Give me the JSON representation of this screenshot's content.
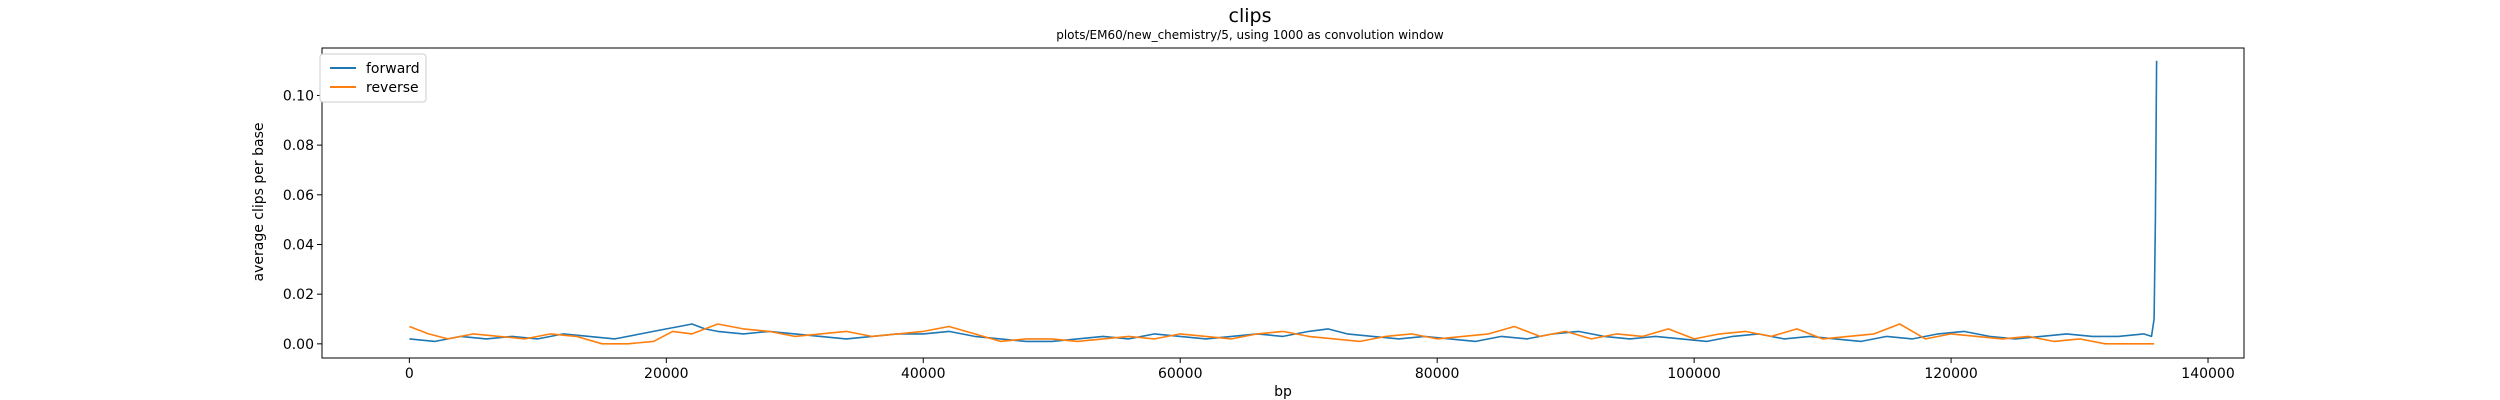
{
  "chart_data": {
    "type": "line",
    "title": "clips",
    "subtitle": "plots/EM60/new_chemistry/5, using 1000 as convolution window",
    "xlabel": "bp",
    "ylabel": "average clips per base",
    "xlim": [
      -6800,
      142800
    ],
    "ylim": [
      -0.0057,
      0.1191
    ],
    "x_ticks": [
      0,
      20000,
      40000,
      60000,
      80000,
      100000,
      120000,
      140000
    ],
    "x_tick_labels": [
      "0",
      "20000",
      "40000",
      "60000",
      "80000",
      "100000",
      "120000",
      "140000"
    ],
    "y_ticks": [
      0.0,
      0.02,
      0.04,
      0.06,
      0.08,
      0.1
    ],
    "y_tick_labels": [
      "0.00",
      "0.02",
      "0.04",
      "0.06",
      "0.08",
      "0.10"
    ],
    "grid": false,
    "legend_position": "upper-left",
    "series": [
      {
        "name": "forward",
        "color": "#1f77b4",
        "x": [
          0,
          2000,
          4000,
          6000,
          8000,
          10000,
          12000,
          14000,
          16000,
          18000,
          19000,
          20000,
          21000,
          22000,
          23000,
          24000,
          26000,
          28000,
          30000,
          32000,
          34000,
          36000,
          38000,
          40000,
          42000,
          44000,
          46000,
          48000,
          50000,
          52000,
          54000,
          56000,
          58000,
          60000,
          62000,
          64000,
          66000,
          68000,
          70000,
          71500,
          73000,
          75000,
          77000,
          79000,
          81000,
          83000,
          85000,
          87000,
          89000,
          91000,
          93000,
          95000,
          97000,
          99000,
          101000,
          103000,
          105000,
          107000,
          109000,
          111000,
          113000,
          115000,
          117000,
          119000,
          121000,
          123000,
          125000,
          127000,
          129000,
          131000,
          133000,
          135000,
          135600,
          135800,
          135900,
          136000
        ],
        "y": [
          0.002,
          0.001,
          0.003,
          0.002,
          0.003,
          0.002,
          0.004,
          0.003,
          0.002,
          0.004,
          0.005,
          0.006,
          0.007,
          0.008,
          0.006,
          0.005,
          0.004,
          0.005,
          0.004,
          0.003,
          0.002,
          0.003,
          0.004,
          0.004,
          0.005,
          0.003,
          0.002,
          0.001,
          0.001,
          0.002,
          0.003,
          0.002,
          0.004,
          0.003,
          0.002,
          0.003,
          0.004,
          0.003,
          0.005,
          0.006,
          0.004,
          0.003,
          0.002,
          0.003,
          0.002,
          0.001,
          0.003,
          0.002,
          0.004,
          0.005,
          0.003,
          0.002,
          0.003,
          0.002,
          0.001,
          0.003,
          0.004,
          0.002,
          0.003,
          0.002,
          0.001,
          0.003,
          0.002,
          0.004,
          0.005,
          0.003,
          0.002,
          0.003,
          0.004,
          0.003,
          0.003,
          0.004,
          0.003,
          0.01,
          0.05,
          0.114
        ]
      },
      {
        "name": "reverse",
        "color": "#ff7f0e",
        "x": [
          0,
          1500,
          3000,
          5000,
          7000,
          9000,
          11000,
          13000,
          15000,
          17000,
          19000,
          20500,
          22000,
          24000,
          26000,
          28000,
          30000,
          32000,
          34000,
          36000,
          38000,
          40000,
          42000,
          44000,
          46000,
          48000,
          50000,
          52000,
          54000,
          56000,
          58000,
          60000,
          62000,
          64000,
          66000,
          68000,
          70000,
          72000,
          74000,
          76000,
          78000,
          80000,
          82000,
          84000,
          86000,
          88000,
          90000,
          92000,
          94000,
          96000,
          98000,
          100000,
          102000,
          104000,
          106000,
          108000,
          110000,
          112000,
          114000,
          116000,
          118000,
          120000,
          122000,
          124000,
          126000,
          128000,
          130000,
          132000,
          134000,
          135800
        ],
        "y": [
          0.007,
          0.004,
          0.002,
          0.004,
          0.003,
          0.002,
          0.004,
          0.003,
          0.0,
          0.0,
          0.001,
          0.005,
          0.004,
          0.008,
          0.006,
          0.005,
          0.003,
          0.004,
          0.005,
          0.003,
          0.004,
          0.005,
          0.007,
          0.004,
          0.001,
          0.002,
          0.002,
          0.001,
          0.002,
          0.003,
          0.002,
          0.004,
          0.003,
          0.002,
          0.004,
          0.005,
          0.003,
          0.002,
          0.001,
          0.003,
          0.004,
          0.002,
          0.003,
          0.004,
          0.007,
          0.003,
          0.005,
          0.002,
          0.004,
          0.003,
          0.006,
          0.002,
          0.004,
          0.005,
          0.003,
          0.006,
          0.002,
          0.003,
          0.004,
          0.008,
          0.002,
          0.004,
          0.003,
          0.002,
          0.003,
          0.001,
          0.002,
          0.0,
          0.0,
          0.0
        ]
      }
    ]
  }
}
